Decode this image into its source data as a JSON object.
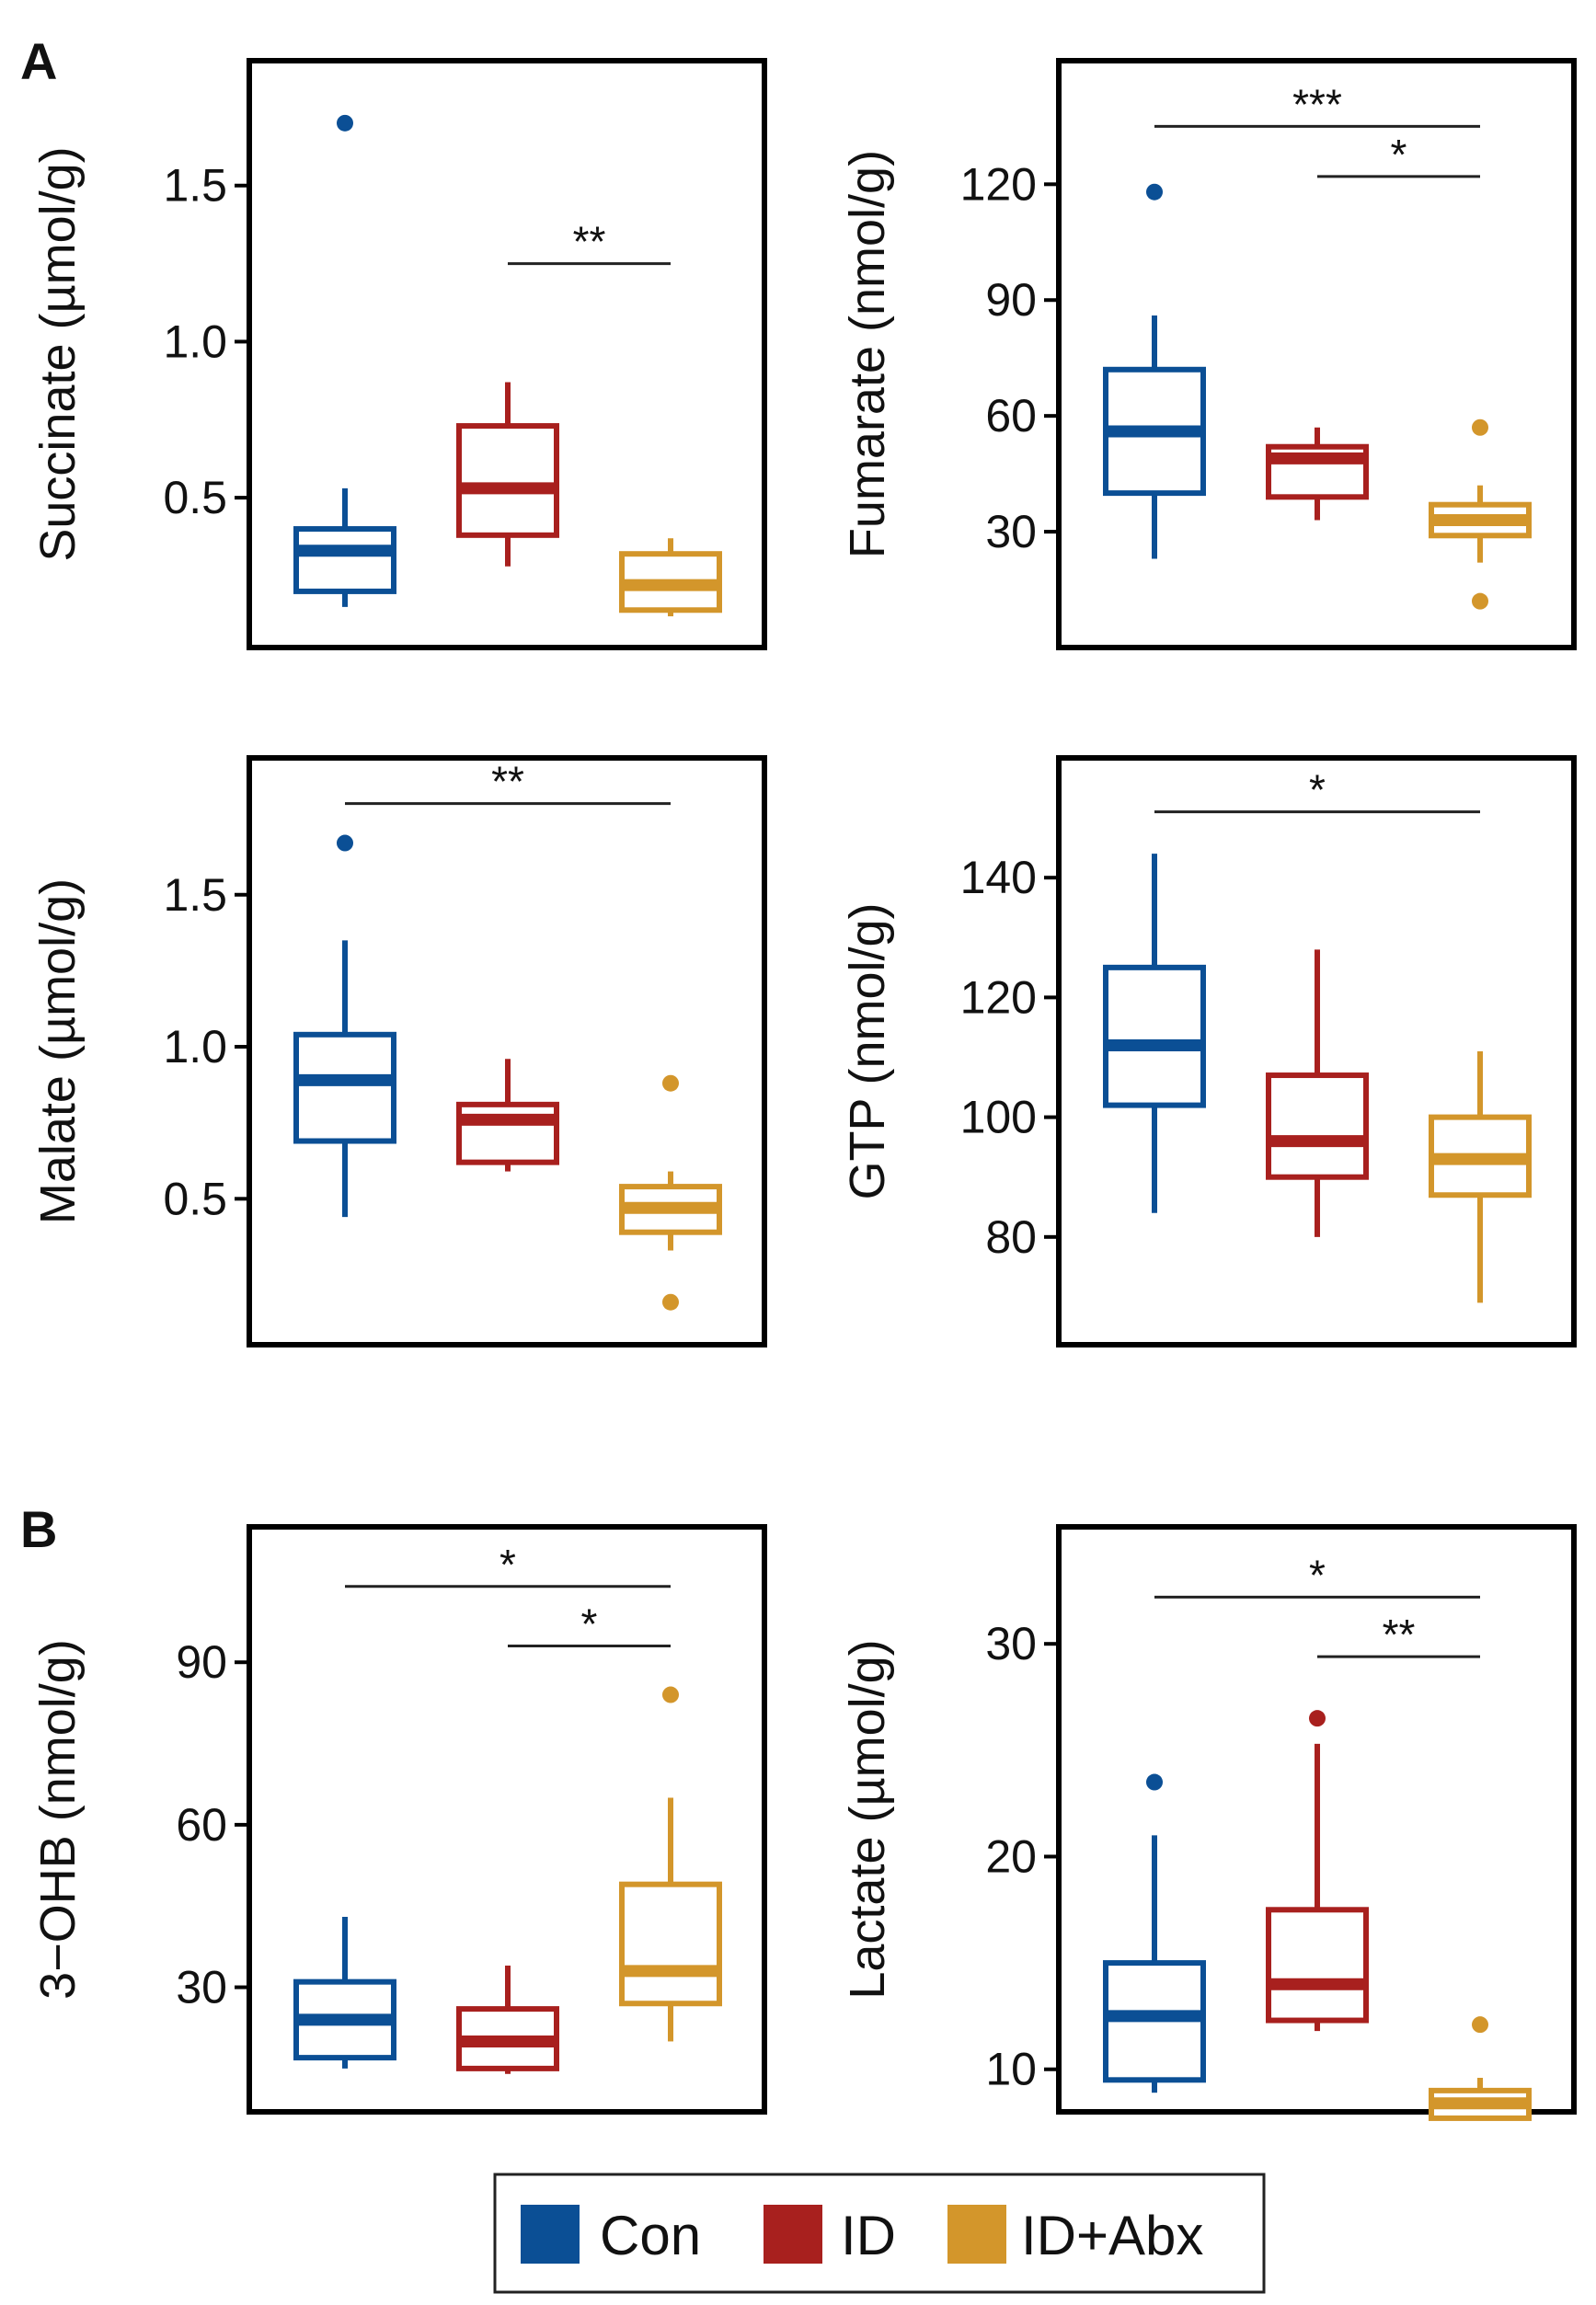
{
  "panel_letters": [
    "A",
    "B"
  ],
  "colors": {
    "Con": "#0b4f95",
    "ID": "#a8201e",
    "ID+Abx": "#d3962b",
    "frame": "#000000"
  },
  "legend": {
    "items": [
      {
        "label": "Con",
        "color": "#0b4f95"
      },
      {
        "label": "ID",
        "color": "#a8201e"
      },
      {
        "label": "ID+Abx",
        "color": "#d3962b"
      }
    ]
  },
  "chart_data": [
    {
      "type": "box",
      "panel": "A",
      "ylabel": "Succinate (µmol/g)",
      "ylim": [
        0.02,
        1.9
      ],
      "yticks": [
        0.5,
        1.0,
        1.5
      ],
      "ytick_labels": [
        "0.5",
        "1.0",
        "1.5"
      ],
      "categories": [
        "Con",
        "ID",
        "ID+Abx"
      ],
      "boxes": [
        {
          "group": "Con",
          "whislo": 0.15,
          "q1": 0.2,
          "med": 0.33,
          "q3": 0.4,
          "whishi": 0.53,
          "fliers": [
            1.7
          ]
        },
        {
          "group": "ID",
          "whislo": 0.28,
          "q1": 0.38,
          "med": 0.53,
          "q3": 0.73,
          "whishi": 0.87,
          "fliers": []
        },
        {
          "group": "ID+Abx",
          "whislo": 0.12,
          "q1": 0.14,
          "med": 0.22,
          "q3": 0.32,
          "whishi": 0.37,
          "fliers": []
        }
      ],
      "significance": [
        {
          "from": "ID",
          "to": "ID+Abx",
          "label": "**",
          "y": 1.25
        }
      ]
    },
    {
      "type": "box",
      "panel": "A",
      "ylabel": "Fumarate (nmol/g)",
      "ylim": [
        0,
        152
      ],
      "yticks": [
        30,
        60,
        90,
        120
      ],
      "ytick_labels": [
        "30",
        "60",
        "90",
        "120"
      ],
      "categories": [
        "Con",
        "ID",
        "ID+Abx"
      ],
      "boxes": [
        {
          "group": "Con",
          "whislo": 23,
          "q1": 40,
          "med": 56,
          "q3": 72,
          "whishi": 86,
          "fliers": [
            118
          ]
        },
        {
          "group": "ID",
          "whislo": 33,
          "q1": 39,
          "med": 49,
          "q3": 52,
          "whishi": 57,
          "fliers": []
        },
        {
          "group": "ID+Abx",
          "whislo": 22,
          "q1": 29,
          "med": 33,
          "q3": 37,
          "whishi": 42,
          "fliers": [
            57,
            12
          ]
        }
      ],
      "significance": [
        {
          "from": "Con",
          "to": "ID+Abx",
          "label": "***",
          "y": 135
        },
        {
          "from": "ID",
          "to": "ID+Abx",
          "label": "*",
          "y": 122
        }
      ]
    },
    {
      "type": "box",
      "panel": "A",
      "ylabel": "Malate (µmol/g)",
      "ylim": [
        0.02,
        1.95
      ],
      "yticks": [
        0.5,
        1.0,
        1.5
      ],
      "ytick_labels": [
        "0.5",
        "1.0",
        "1.5"
      ],
      "categories": [
        "Con",
        "ID",
        "ID+Abx"
      ],
      "boxes": [
        {
          "group": "Con",
          "whislo": 0.44,
          "q1": 0.69,
          "med": 0.89,
          "q3": 1.04,
          "whishi": 1.35,
          "fliers": [
            1.67
          ]
        },
        {
          "group": "ID",
          "whislo": 0.59,
          "q1": 0.62,
          "med": 0.76,
          "q3": 0.81,
          "whishi": 0.96,
          "fliers": []
        },
        {
          "group": "ID+Abx",
          "whislo": 0.33,
          "q1": 0.39,
          "med": 0.47,
          "q3": 0.54,
          "whishi": 0.59,
          "fliers": [
            0.88,
            0.16
          ]
        }
      ],
      "significance": [
        {
          "from": "Con",
          "to": "ID+Abx",
          "label": "**",
          "y": 1.8
        }
      ]
    },
    {
      "type": "box",
      "panel": "A",
      "ylabel": "GTP (nmol/g)",
      "ylim": [
        62,
        160
      ],
      "yticks": [
        80,
        100,
        120,
        140
      ],
      "ytick_labels": [
        "80",
        "100",
        "120",
        "140"
      ],
      "categories": [
        "Con",
        "ID",
        "ID+Abx"
      ],
      "boxes": [
        {
          "group": "Con",
          "whislo": 84,
          "q1": 102,
          "med": 112,
          "q3": 125,
          "whishi": 144,
          "fliers": []
        },
        {
          "group": "ID",
          "whislo": 80,
          "q1": 90,
          "med": 96,
          "q3": 107,
          "whishi": 128,
          "fliers": []
        },
        {
          "group": "ID+Abx",
          "whislo": 69,
          "q1": 87,
          "med": 93,
          "q3": 100,
          "whishi": 111,
          "fliers": []
        }
      ],
      "significance": [
        {
          "from": "Con",
          "to": "ID+Abx",
          "label": "*",
          "y": 151
        }
      ]
    },
    {
      "type": "box",
      "panel": "B",
      "ylabel": "3−OHB (nmol/g)",
      "ylim": [
        7,
        115
      ],
      "yticks": [
        30,
        60,
        90
      ],
      "ytick_labels": [
        "30",
        "60",
        "90"
      ],
      "categories": [
        "Con",
        "ID",
        "ID+Abx"
      ],
      "boxes": [
        {
          "group": "Con",
          "whislo": 15,
          "q1": 17,
          "med": 24,
          "q3": 31,
          "whishi": 43,
          "fliers": []
        },
        {
          "group": "ID",
          "whislo": 14,
          "q1": 15,
          "med": 20,
          "q3": 26,
          "whishi": 34,
          "fliers": []
        },
        {
          "group": "ID+Abx",
          "whislo": 20,
          "q1": 27,
          "med": 33,
          "q3": 49,
          "whishi": 65,
          "fliers": [
            84
          ]
        }
      ],
      "significance": [
        {
          "from": "Con",
          "to": "ID+Abx",
          "label": "*",
          "y": 104
        },
        {
          "from": "ID",
          "to": "ID+Abx",
          "label": "*",
          "y": 93
        }
      ]
    },
    {
      "type": "box",
      "panel": "B",
      "ylabel": "Lactate (µmol/g)",
      "ylim": [
        8,
        35.5
      ],
      "yticks": [
        10,
        20,
        30
      ],
      "ytick_labels": [
        "10",
        "20",
        "30"
      ],
      "categories": [
        "Con",
        "ID",
        "ID+Abx"
      ],
      "boxes": [
        {
          "group": "Con",
          "whislo": 8.9,
          "q1": 9.5,
          "med": 12.5,
          "q3": 15,
          "whishi": 21,
          "fliers": [
            23.5
          ]
        },
        {
          "group": "ID",
          "whislo": 11.8,
          "q1": 12.3,
          "med": 14,
          "q3": 17.5,
          "whishi": 25.3,
          "fliers": [
            26.5
          ]
        },
        {
          "group": "ID+Abx",
          "whislo": 7.6,
          "q1": 7.7,
          "med": 8.4,
          "q3": 9,
          "whishi": 9.6,
          "fliers": [
            12.1
          ]
        }
      ],
      "significance": [
        {
          "from": "Con",
          "to": "ID+Abx",
          "label": "*",
          "y": 32.2
        },
        {
          "from": "ID",
          "to": "ID+Abx",
          "label": "**",
          "y": 29.4
        }
      ]
    }
  ]
}
